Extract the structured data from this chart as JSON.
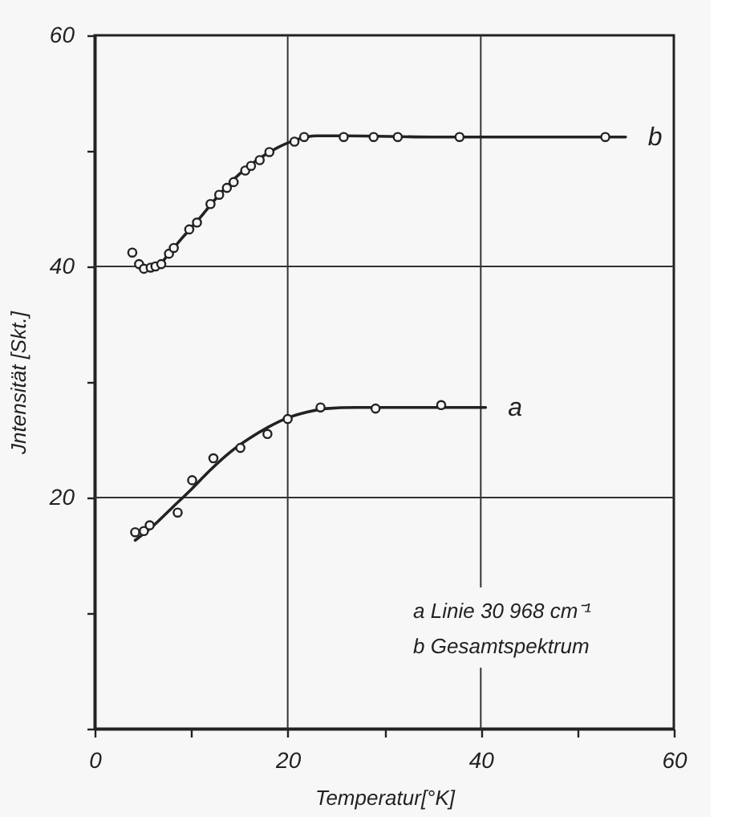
{
  "chart_data": {
    "type": "scatter",
    "xlabel": "Temperatur[°K]",
    "ylabel": "Jntensität [Skt.]",
    "xlim": [
      0,
      60
    ],
    "ylim": [
      0,
      60
    ],
    "xticks": [
      0,
      {
        "value": 10,
        "label": null
      },
      20,
      {
        "value": 30,
        "label": null
      },
      40,
      {
        "value": 50,
        "label": null
      },
      60
    ],
    "yticks": [
      {
        "value": 0,
        "label": null
      },
      {
        "value": 10,
        "label": null
      },
      20,
      {
        "value": 30,
        "label": null
      },
      40,
      {
        "value": 50,
        "label": null
      },
      60
    ],
    "grid": true,
    "marker": "circle",
    "series": [
      {
        "type": "line",
        "name": "b",
        "color": "#222222",
        "marker": "none",
        "line_style": "solid",
        "x": [
          4.6,
          5.5,
          6.5,
          7.5,
          9,
          11,
          13,
          15,
          17,
          19,
          21,
          23,
          26,
          35,
          55
        ],
        "values": [
          40.2,
          39.9,
          40.0,
          40.9,
          42.4,
          44.3,
          46.3,
          48.0,
          49.3,
          50.3,
          51.0,
          51.3,
          51.3,
          51.2,
          51.2
        ]
      },
      {
        "type": "line",
        "name": "a",
        "color": "#222222",
        "marker": "none",
        "line_style": "solid",
        "x": [
          4.2,
          6,
          8,
          10,
          12,
          14,
          16,
          18,
          20,
          22,
          24,
          27,
          30,
          35,
          40.5
        ],
        "values": [
          16.3,
          17.5,
          19.1,
          20.7,
          22.4,
          23.9,
          25.1,
          26.1,
          26.9,
          27.4,
          27.7,
          27.8,
          27.8,
          27.8,
          27.8
        ]
      },
      {
        "color": "#222222",
        "x": [
          3.9,
          4.6,
          5.1,
          5.8,
          6.3,
          6.9,
          7.7,
          8.2,
          9.8,
          10.6,
          12.0,
          12.9,
          13.7,
          14.4,
          15.6,
          16.2,
          17.1,
          18.1,
          20.7,
          21.7,
          25.8,
          28.9,
          31.4,
          37.8,
          52.9
        ],
        "values": [
          41.2,
          40.2,
          39.8,
          39.9,
          40.0,
          40.2,
          41.1,
          41.6,
          43.2,
          43.8,
          45.4,
          46.2,
          46.8,
          47.3,
          48.3,
          48.7,
          49.2,
          49.9,
          50.8,
          51.2,
          51.2,
          51.2,
          51.2,
          51.2,
          51.2
        ]
      },
      {
        "color": "#222222",
        "x": [
          4.2,
          5.1,
          5.7,
          8.6,
          10.1,
          12.3,
          15.1,
          17.9,
          20.0,
          23.4,
          29.1,
          35.9
        ],
        "values": [
          17.0,
          17.1,
          17.6,
          18.7,
          21.5,
          23.4,
          24.3,
          25.5,
          26.8,
          27.8,
          27.7,
          28.0
        ]
      }
    ],
    "annotations": [
      "a  Linie  30 968 cm⁻¹",
      "b  Gesamtspektrum"
    ]
  }
}
